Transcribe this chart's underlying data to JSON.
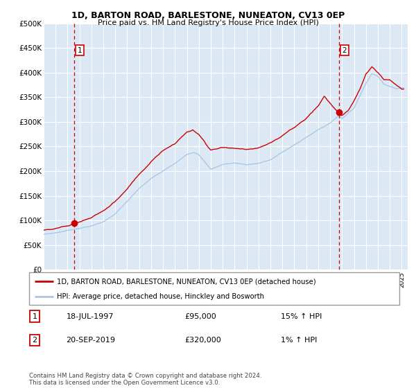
{
  "title": "1D, BARTON ROAD, BARLESTONE, NUNEATON, CV13 0EP",
  "subtitle": "Price paid vs. HM Land Registry's House Price Index (HPI)",
  "legend_line1": "1D, BARTON ROAD, BARLESTONE, NUNEATON, CV13 0EP (detached house)",
  "legend_line2": "HPI: Average price, detached house, Hinckley and Bosworth",
  "sale1_label": "1",
  "sale1_date": "18-JUL-1997",
  "sale1_price": "£95,000",
  "sale1_hpi": "15% ↑ HPI",
  "sale1_year": 1997.54,
  "sale1_value": 95000,
  "sale2_label": "2",
  "sale2_date": "20-SEP-2019",
  "sale2_price": "£320,000",
  "sale2_hpi": "1% ↑ HPI",
  "sale2_year": 2019.72,
  "sale2_value": 320000,
  "hpi_color": "#a8c8e8",
  "price_color": "#cc0000",
  "marker_color": "#cc0000",
  "dashed_line_color": "#cc0000",
  "bg_color": "#dce9f5",
  "grid_color": "#ffffff",
  "ylim_min": 0,
  "ylim_max": 500000,
  "xlim_min": 1995,
  "xlim_max": 2025.5,
  "footer_text": "Contains HM Land Registry data © Crown copyright and database right 2024.\nThis data is licensed under the Open Government Licence v3.0."
}
